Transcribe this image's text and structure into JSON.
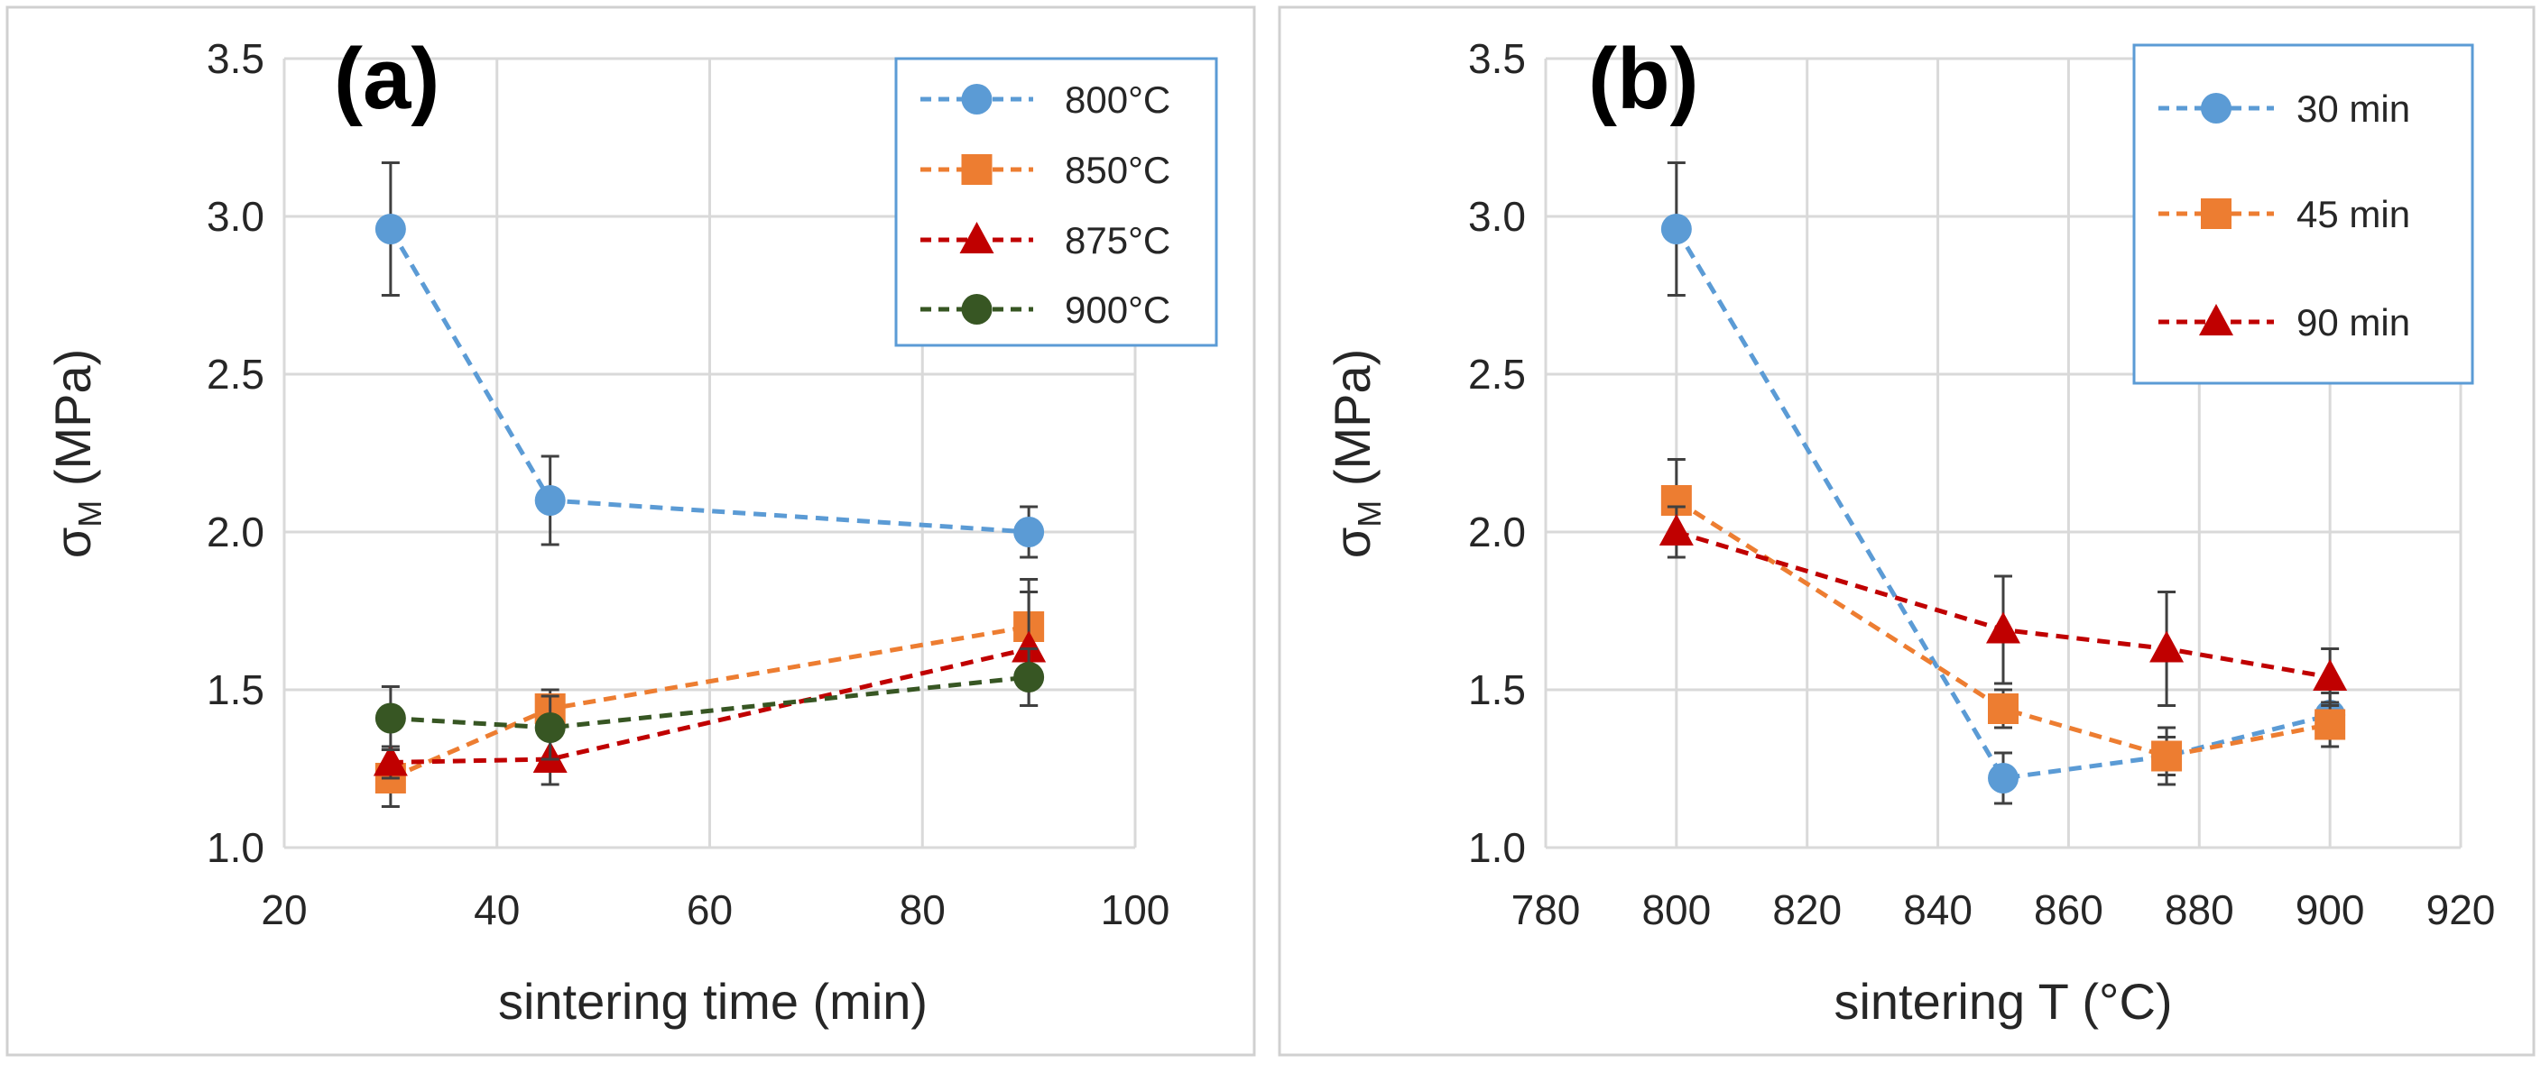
{
  "chart_data": [
    {
      "type": "line",
      "panel_label": "(a)",
      "xlabel": "sintering time (min)",
      "ylabel": "σM (MPa)",
      "ylabel_main": "σ",
      "ylabel_sub": "M",
      "ylabel_rest": " (MPa)",
      "xlim": [
        20,
        100
      ],
      "ylim": [
        1.0,
        3.5
      ],
      "xticks": [
        20,
        40,
        60,
        80,
        100
      ],
      "xtick_labels": [
        "20",
        "40",
        "60",
        "80",
        "100"
      ],
      "yticks": [
        1.0,
        1.5,
        2.0,
        2.5,
        3.0,
        3.5
      ],
      "ytick_labels": [
        "1.0",
        "1.5",
        "2.0",
        "2.5",
        "3.0",
        "3.5"
      ],
      "grid": true,
      "legend_position": "top-right",
      "series": [
        {
          "name": "800°C",
          "color": "#5b9bd5",
          "marker": "circle",
          "x": [
            30,
            45,
            90
          ],
          "y": [
            2.96,
            2.1,
            2.0
          ],
          "err": [
            0.21,
            0.14,
            0.08
          ]
        },
        {
          "name": "850°C",
          "color": "#ed7d31",
          "marker": "square",
          "x": [
            30,
            45,
            90
          ],
          "y": [
            1.22,
            1.44,
            1.7
          ],
          "err": [
            0.09,
            0.06,
            0.15
          ]
        },
        {
          "name": "875°C",
          "color": "#c00000",
          "marker": "triangle",
          "x": [
            30,
            45,
            90
          ],
          "y": [
            1.27,
            1.28,
            1.63
          ],
          "err": [
            0.05,
            0.08,
            0.18
          ]
        },
        {
          "name": "900°C",
          "color": "#375623",
          "marker": "circle",
          "x": [
            30,
            45,
            90
          ],
          "y": [
            1.41,
            1.38,
            1.54
          ],
          "err": [
            0.1,
            0.1,
            0.09
          ]
        }
      ]
    },
    {
      "type": "line",
      "panel_label": "(b)",
      "xlabel": "sintering T (°C)",
      "ylabel": "σM (MPa)",
      "ylabel_main": "σ",
      "ylabel_sub": "M",
      "ylabel_rest": " (MPa)",
      "xlim": [
        780,
        920
      ],
      "ylim": [
        1.0,
        3.5
      ],
      "xticks": [
        780,
        800,
        820,
        840,
        860,
        880,
        900,
        920
      ],
      "xtick_labels": [
        "780",
        "800",
        "820",
        "840",
        "860",
        "880",
        "900",
        "920"
      ],
      "yticks": [
        1.0,
        1.5,
        2.0,
        2.5,
        3.0,
        3.5
      ],
      "ytick_labels": [
        "1.0",
        "1.5",
        "2.0",
        "2.5",
        "3.0",
        "3.5"
      ],
      "grid": true,
      "legend_position": "top-right",
      "series": [
        {
          "name": "30 min",
          "color": "#5b9bd5",
          "marker": "circle",
          "x": [
            800,
            850,
            875,
            900
          ],
          "y": [
            2.96,
            1.22,
            1.29,
            1.42
          ],
          "err": [
            0.21,
            0.08,
            0.06,
            0.07
          ]
        },
        {
          "name": "45 min",
          "color": "#ed7d31",
          "marker": "square",
          "x": [
            800,
            850,
            875,
            900
          ],
          "y": [
            2.1,
            1.44,
            1.29,
            1.39
          ],
          "err": [
            0.13,
            0.06,
            0.09,
            0.07
          ]
        },
        {
          "name": "90 min",
          "color": "#c00000",
          "marker": "triangle",
          "x": [
            800,
            850,
            875,
            900
          ],
          "y": [
            2.0,
            1.69,
            1.63,
            1.54
          ],
          "err": [
            0.08,
            0.17,
            0.18,
            0.09
          ]
        }
      ]
    }
  ]
}
